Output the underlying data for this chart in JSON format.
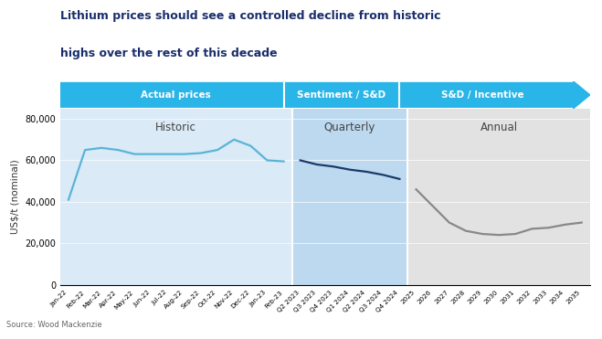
{
  "title_line1": "Lithium prices should see a controlled decline from historic",
  "title_line2": "highs over the rest of this decade",
  "ylabel": "US$/t (nominal)",
  "source": "Source: Wood Mackenzie",
  "ylim": [
    0,
    85000
  ],
  "yticks": [
    0,
    20000,
    40000,
    60000,
    80000
  ],
  "ytick_labels": [
    "0",
    "20,000",
    "40,000",
    "60,000",
    "80,000"
  ],
  "historic_x_labels": [
    "Jan-22",
    "Feb-22",
    "Mar-22",
    "Apr-22",
    "May-22",
    "Jun-22",
    "Jul-22",
    "Aug-22",
    "Sep-22",
    "Oct-22",
    "Nov-22",
    "Dec-22",
    "Jan-23",
    "Feb-23"
  ],
  "historic_y": [
    41000,
    65000,
    66000,
    65000,
    63000,
    63000,
    63000,
    63000,
    63500,
    65000,
    70000,
    67000,
    60000,
    59500
  ],
  "quarterly_x_labels": [
    "Q2 2023",
    "Q3 2023",
    "Q4 2023",
    "Q1 2024",
    "Q2 2024",
    "Q3 2024",
    "Q4 2024"
  ],
  "quarterly_y": [
    60000,
    58000,
    57000,
    55500,
    54500,
    53000,
    51000
  ],
  "annual_x_labels": [
    "2025",
    "2026",
    "2027",
    "2028",
    "2029",
    "2030",
    "2031",
    "2032",
    "2033",
    "2034",
    "2035"
  ],
  "annual_y": [
    46000,
    38000,
    30000,
    26000,
    24500,
    24000,
    24500,
    27000,
    27500,
    29000,
    30000
  ],
  "bg_historic": "#daeaf7",
  "bg_quarterly": "#bdd9ef",
  "bg_annual": "#e2e2e2",
  "line_historic": "#5ab4d6",
  "line_quarterly": "#1a3a6b",
  "line_annual": "#888888",
  "arrow_color": "#29b5e8",
  "title_color": "#1a2e6b",
  "header_actual": "Actual prices",
  "header_sentiment": "Sentiment / S&D",
  "header_sd": "S&D / Incentive",
  "label_historic": "Historic",
  "label_quarterly": "Quarterly",
  "label_annual": "Annual",
  "n_historic": 14,
  "n_quarterly": 7,
  "n_annual": 11
}
